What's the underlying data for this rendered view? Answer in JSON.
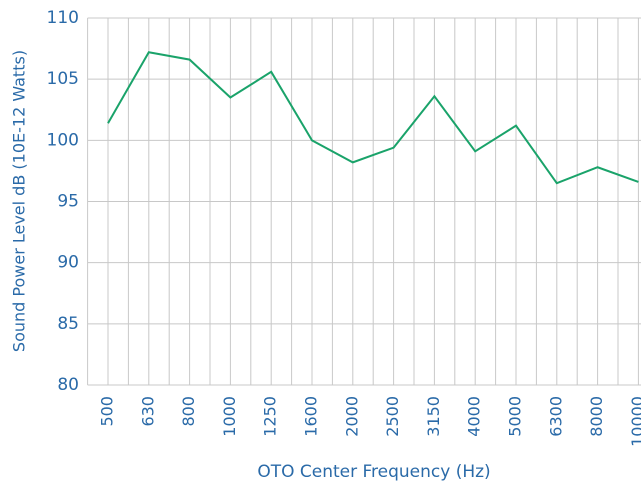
{
  "chart_data": {
    "type": "line",
    "x_label": "OTO Center Frequency (Hz)",
    "y_label": "Sound Power Level dB (10E-12 Watts)",
    "categories": [
      "500",
      "630",
      "800",
      "1000",
      "1250",
      "1600",
      "2000",
      "2500",
      "3150",
      "4000",
      "5000",
      "6300",
      "8000",
      "10000"
    ],
    "series": [
      {
        "color": "#1aa36a",
        "values": [
          101.4,
          107.2,
          106.6,
          103.5,
          105.6,
          100.0,
          98.2,
          99.4,
          103.6,
          99.1,
          101.2,
          96.5,
          97.8,
          96.6
        ]
      }
    ],
    "ylim": [
      80,
      110
    ],
    "yticks": [
      80,
      85,
      90,
      95,
      100,
      105,
      110
    ],
    "grid": true
  }
}
